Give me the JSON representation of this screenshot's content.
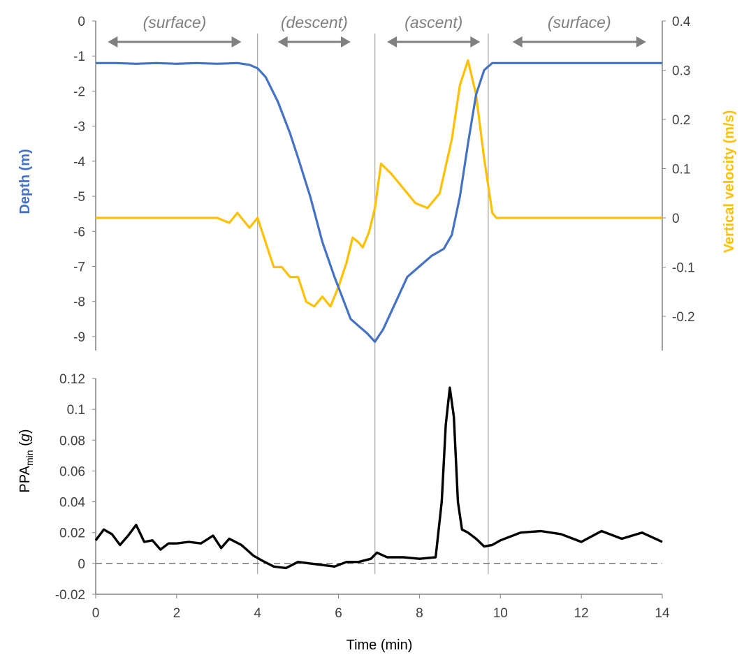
{
  "colors": {
    "depth": "#4472C4",
    "velocity": "#FFC000",
    "ppa": "#000000",
    "axis": "#808080",
    "phase_label": "#808080",
    "tick_text": "#404040"
  },
  "chart_data": [
    {
      "type": "line",
      "panel": "top",
      "xlabel": "",
      "ylabel": "Depth (m)",
      "y2label": "Vertical velocity (m/s)",
      "ylim": [
        -9.4,
        0
      ],
      "y2lim": [
        -0.26,
        0.4
      ],
      "y_ticks": [
        0,
        -1,
        -2,
        -3,
        -4,
        -5,
        -6,
        -7,
        -8,
        -9
      ],
      "y_tick_labels": [
        "0",
        "-1",
        "-2",
        "-3",
        "-4",
        "-5",
        "-6",
        "-7",
        "-8",
        "-9"
      ],
      "y2_ticks": [
        0.4,
        0.3,
        0.2,
        0.1,
        0,
        -0.1,
        -0.2
      ],
      "y2_tick_labels": [
        "0.4",
        "0.3",
        "0.2",
        "0.1",
        "0",
        "-0.1",
        "-0.2"
      ],
      "phase_labels": [
        {
          "text": "(surface)",
          "x_from": 0.3,
          "x_to": 3.6
        },
        {
          "text": "(descent)",
          "x_from": 4.5,
          "x_to": 6.3
        },
        {
          "text": "(ascent)",
          "x_from": 7.2,
          "x_to": 9.5
        },
        {
          "text": "(surface)",
          "x_from": 10.3,
          "x_to": 13.6
        }
      ],
      "phase_boundaries": [
        4.0,
        6.9,
        9.7
      ],
      "series": [
        {
          "name": "Depth (m)",
          "axis": "left",
          "x": [
            0,
            0.5,
            1,
            1.5,
            2,
            2.5,
            3,
            3.5,
            3.8,
            4.0,
            4.2,
            4.5,
            4.8,
            5.0,
            5.3,
            5.6,
            5.9,
            6.1,
            6.3,
            6.5,
            6.7,
            6.9,
            7.1,
            7.3,
            7.5,
            7.7,
            8.0,
            8.3,
            8.6,
            8.8,
            9.0,
            9.2,
            9.4,
            9.6,
            9.8,
            10.5,
            11,
            12,
            13,
            14
          ],
          "values": [
            -1.2,
            -1.2,
            -1.22,
            -1.2,
            -1.22,
            -1.2,
            -1.22,
            -1.2,
            -1.25,
            -1.35,
            -1.6,
            -2.3,
            -3.2,
            -3.9,
            -5.0,
            -6.3,
            -7.3,
            -7.9,
            -8.5,
            -8.7,
            -8.9,
            -9.15,
            -8.8,
            -8.3,
            -7.8,
            -7.3,
            -7.0,
            -6.7,
            -6.5,
            -6.1,
            -5.0,
            -3.5,
            -2.1,
            -1.4,
            -1.2,
            -1.2,
            -1.2,
            -1.2,
            -1.2,
            -1.2
          ]
        },
        {
          "name": "Vertical velocity (m/s)",
          "axis": "right",
          "x": [
            0,
            0.5,
            1,
            1.5,
            2,
            2.5,
            3,
            3.3,
            3.5,
            3.8,
            4.0,
            4.2,
            4.4,
            4.6,
            4.8,
            5.0,
            5.2,
            5.4,
            5.6,
            5.8,
            6.0,
            6.2,
            6.35,
            6.5,
            6.6,
            6.75,
            6.9,
            7.05,
            7.3,
            7.6,
            7.9,
            8.2,
            8.5,
            8.8,
            9.0,
            9.2,
            9.4,
            9.6,
            9.8,
            9.9,
            10.5,
            11,
            12,
            13,
            14
          ],
          "values": [
            0,
            0,
            0,
            0,
            0,
            0,
            0,
            -0.01,
            0.01,
            -0.02,
            0,
            -0.05,
            -0.1,
            -0.1,
            -0.12,
            -0.12,
            -0.17,
            -0.18,
            -0.16,
            -0.18,
            -0.14,
            -0.09,
            -0.04,
            -0.05,
            -0.06,
            -0.03,
            0.02,
            0.11,
            0.09,
            0.06,
            0.03,
            0.02,
            0.05,
            0.16,
            0.27,
            0.32,
            0.25,
            0.12,
            0.01,
            0,
            0,
            0,
            0,
            0,
            0
          ]
        }
      ]
    },
    {
      "type": "line",
      "panel": "bottom",
      "xlabel": "Time (min)",
      "ylabel_main": "PPA",
      "ylabel_sub": "min",
      "ylabel_unit": "g",
      "xlim": [
        0,
        14
      ],
      "ylim": [
        -0.02,
        0.12
      ],
      "x_ticks": [
        0,
        2,
        4,
        6,
        8,
        10,
        12,
        14
      ],
      "x_tick_labels": [
        "0",
        "2",
        "4",
        "6",
        "8",
        "10",
        "12",
        "14"
      ],
      "y_ticks": [
        0.12,
        0.1,
        0.08,
        0.06,
        0.04,
        0.02,
        0,
        -0.02
      ],
      "y_tick_labels": [
        "0.12",
        "0.1",
        "0.08",
        "0.06",
        "0.04",
        "0.02",
        "0",
        "-0.02"
      ],
      "reference_line": 0,
      "series": [
        {
          "name": "PPAmin",
          "x": [
            0,
            0.2,
            0.4,
            0.6,
            0.8,
            1.0,
            1.2,
            1.4,
            1.6,
            1.8,
            2.0,
            2.3,
            2.6,
            2.9,
            3.1,
            3.3,
            3.6,
            3.9,
            4.1,
            4.4,
            4.7,
            5.0,
            5.3,
            5.6,
            5.9,
            6.2,
            6.5,
            6.8,
            6.95,
            7.2,
            7.6,
            8.0,
            8.4,
            8.55,
            8.65,
            8.75,
            8.85,
            8.95,
            9.05,
            9.2,
            9.4,
            9.6,
            9.8,
            10.0,
            10.5,
            11.0,
            11.5,
            12.0,
            12.5,
            13.0,
            13.5,
            14.0
          ],
          "values": [
            0.015,
            0.022,
            0.019,
            0.012,
            0.018,
            0.025,
            0.014,
            0.015,
            0.009,
            0.013,
            0.013,
            0.014,
            0.013,
            0.018,
            0.01,
            0.016,
            0.012,
            0.005,
            0.002,
            -0.002,
            -0.003,
            0.001,
            0.0,
            -0.001,
            -0.002,
            0.001,
            0.001,
            0.003,
            0.007,
            0.004,
            0.004,
            0.003,
            0.004,
            0.04,
            0.09,
            0.114,
            0.095,
            0.04,
            0.022,
            0.02,
            0.016,
            0.011,
            0.012,
            0.015,
            0.02,
            0.021,
            0.019,
            0.014,
            0.021,
            0.016,
            0.02,
            0.014
          ]
        }
      ]
    }
  ]
}
